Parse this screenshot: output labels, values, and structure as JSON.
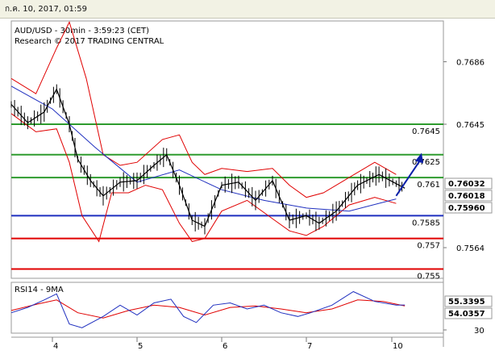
{
  "header": {
    "datetime": "ก.ค. 10, 2017, 01:59"
  },
  "chart_data": [
    {
      "type": "line",
      "title": "AUD/USD - 30min - 3:59:23 (CET)",
      "subtitle": "Research © 2017 TRADING CENTRAL",
      "x_ticks": [
        "4",
        "5",
        "6",
        "7",
        "10"
      ],
      "y_ticks": [
        "0.7686",
        "0.7645",
        "0.7564"
      ],
      "ylim": [
        0.7535,
        0.7708
      ],
      "levels": [
        {
          "value": 0.7645,
          "label": "0.7645",
          "color": "#2e9b2e"
        },
        {
          "value": 0.7625,
          "label": "0.7625",
          "color": "#2e9b2e"
        },
        {
          "value": 0.761,
          "label": "0.761",
          "color": "#2e9b2e"
        },
        {
          "value": 0.7585,
          "label": "0.7585",
          "color": "#1f2fbf"
        },
        {
          "value": 0.757,
          "label": "0.757",
          "color": "#e00000"
        },
        {
          "value": 0.755,
          "label": "0.755",
          "color": "#e00000"
        }
      ],
      "price_tags": [
        {
          "value": 0.76032,
          "label": "0.76032",
          "bg": "#ffffff",
          "fg": "#000000"
        },
        {
          "value": 0.76018,
          "label": "0.76018",
          "bg": "#ffffff",
          "fg": "#e00000"
        },
        {
          "value": 0.7596,
          "label": "0.75960",
          "bg": "#ffffff",
          "fg": "#1f2fbf"
        }
      ],
      "forecast_arrow": {
        "from": [
          10,
          0.7598
        ],
        "to": [
          10.3,
          0.7622
        ]
      },
      "series": [
        {
          "name": "price",
          "color": "#000000",
          "x": [
            3.5,
            3.7,
            3.9,
            4.05,
            4.2,
            4.3,
            4.45,
            4.6,
            4.8,
            5.0,
            5.2,
            5.35,
            5.5,
            5.65,
            5.8,
            6.0,
            6.2,
            6.4,
            6.6,
            6.8,
            7.0,
            7.15,
            7.35,
            7.6,
            7.85,
            8.05,
            8.15
          ],
          "y": [
            0.7658,
            0.7646,
            0.7653,
            0.7668,
            0.7645,
            0.7622,
            0.7608,
            0.7598,
            0.7607,
            0.7608,
            0.7618,
            0.7625,
            0.7605,
            0.7582,
            0.7578,
            0.7605,
            0.7607,
            0.7595,
            0.7608,
            0.7582,
            0.7585,
            0.758,
            0.7588,
            0.7605,
            0.7612,
            0.7606,
            0.7603
          ]
        },
        {
          "name": "moving-average",
          "color": "#1f2fbf",
          "x": [
            3.5,
            4.0,
            4.5,
            5.0,
            5.5,
            6.0,
            6.5,
            7.0,
            7.5,
            8.05
          ],
          "y": [
            0.767,
            0.7655,
            0.763,
            0.7607,
            0.7615,
            0.7602,
            0.7595,
            0.759,
            0.7588,
            0.7596
          ]
        },
        {
          "name": "bollinger-upper",
          "color": "#e00000",
          "x": [
            3.5,
            3.8,
            4.05,
            4.2,
            4.4,
            4.6,
            4.8,
            5.0,
            5.3,
            5.5,
            5.65,
            5.8,
            6.0,
            6.3,
            6.6,
            6.8,
            7.0,
            7.2,
            7.5,
            7.8,
            8.05
          ],
          "y": [
            0.7675,
            0.7665,
            0.7695,
            0.7712,
            0.7675,
            0.7625,
            0.7618,
            0.762,
            0.7635,
            0.7638,
            0.762,
            0.7612,
            0.7616,
            0.7614,
            0.7616,
            0.7605,
            0.7597,
            0.76,
            0.761,
            0.762,
            0.7612
          ]
        },
        {
          "name": "bollinger-lower",
          "color": "#e00000",
          "x": [
            3.5,
            3.8,
            4.05,
            4.2,
            4.35,
            4.55,
            4.7,
            4.9,
            5.1,
            5.3,
            5.5,
            5.65,
            5.8,
            6.0,
            6.3,
            6.6,
            6.8,
            7.0,
            7.2,
            7.5,
            7.8,
            8.05
          ],
          "y": [
            0.7652,
            0.764,
            0.7642,
            0.762,
            0.7585,
            0.7568,
            0.76,
            0.76,
            0.7605,
            0.7602,
            0.758,
            0.7568,
            0.757,
            0.7588,
            0.7595,
            0.7583,
            0.7575,
            0.7572,
            0.7578,
            0.7592,
            0.7597,
            0.7593
          ]
        }
      ]
    },
    {
      "type": "line",
      "title": "RSI14 - 9MA",
      "y_ticks": [
        "30"
      ],
      "ylim": [
        20,
        80
      ],
      "price_tags": [
        {
          "value": 55.3395,
          "label": "55.3395",
          "bg": "#ffffff",
          "fg": "#1f2fbf"
        },
        {
          "value": 54.0357,
          "label": "54.0357",
          "bg": "#ffffff",
          "fg": "#e00000"
        }
      ],
      "series": [
        {
          "name": "rsi",
          "color": "#1f2fbf",
          "x": [
            3.5,
            3.7,
            3.9,
            4.05,
            4.2,
            4.35,
            4.6,
            4.8,
            5.0,
            5.2,
            5.4,
            5.55,
            5.7,
            5.9,
            6.1,
            6.3,
            6.5,
            6.7,
            6.9,
            7.05,
            7.3,
            7.55,
            7.8,
            8.05,
            8.15
          ],
          "y": [
            45,
            52,
            62,
            70,
            30,
            25,
            40,
            55,
            42,
            58,
            63,
            40,
            32,
            55,
            58,
            50,
            55,
            45,
            40,
            45,
            55,
            73,
            60,
            55,
            55.3
          ]
        },
        {
          "name": "rsi-ma",
          "color": "#e00000",
          "x": [
            3.5,
            3.8,
            4.05,
            4.3,
            4.6,
            4.9,
            5.2,
            5.5,
            5.8,
            6.1,
            6.4,
            6.7,
            7.0,
            7.3,
            7.6,
            7.9,
            8.15
          ],
          "y": [
            48,
            56,
            62,
            45,
            38,
            48,
            55,
            52,
            42,
            52,
            54,
            50,
            45,
            50,
            62,
            60,
            54
          ]
        }
      ]
    }
  ]
}
